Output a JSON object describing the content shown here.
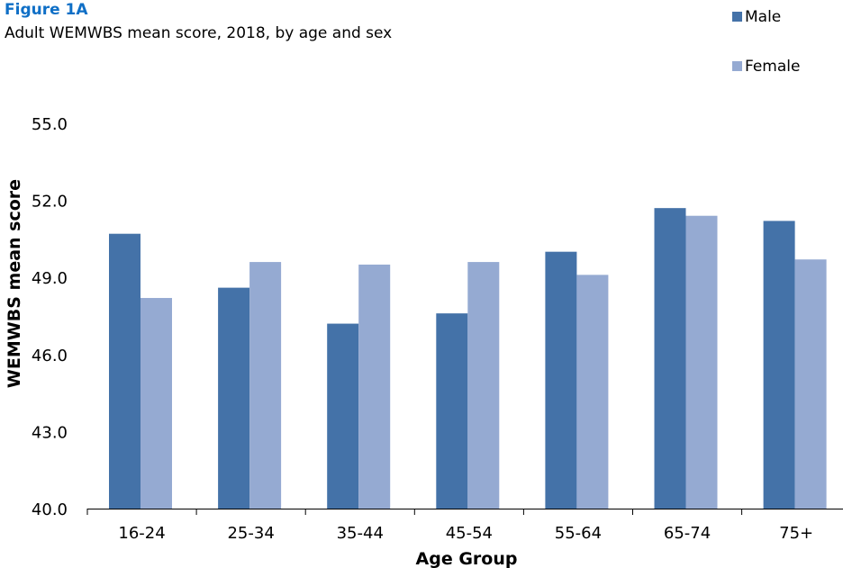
{
  "figure": {
    "label": "Figure 1A",
    "title": "Adult WEMWBS mean score, 2018, by age and sex"
  },
  "colors": {
    "male": "#4472a8",
    "female": "#95aad2",
    "axis": "#000000",
    "accent": "#0f6fc6"
  },
  "chart_data": {
    "type": "bar",
    "title": "Adult WEMWBS mean score, 2018, by age and sex",
    "xlabel": "Age Group",
    "ylabel": "WEMWBS mean score",
    "categories": [
      "16-24",
      "25-34",
      "35-44",
      "45-54",
      "55-64",
      "65-74",
      "75+"
    ],
    "series": [
      {
        "name": "Male",
        "values": [
          50.7,
          48.6,
          47.2,
          47.6,
          50.0,
          51.7,
          51.2
        ]
      },
      {
        "name": "Female",
        "values": [
          48.2,
          49.6,
          49.5,
          49.6,
          49.1,
          51.4,
          49.7
        ]
      }
    ],
    "ylim": [
      40.0,
      55.0
    ],
    "yticks": [
      "40.0",
      "43.0",
      "46.0",
      "49.0",
      "52.0",
      "55.0"
    ],
    "grid": false,
    "legend": "top-right"
  }
}
